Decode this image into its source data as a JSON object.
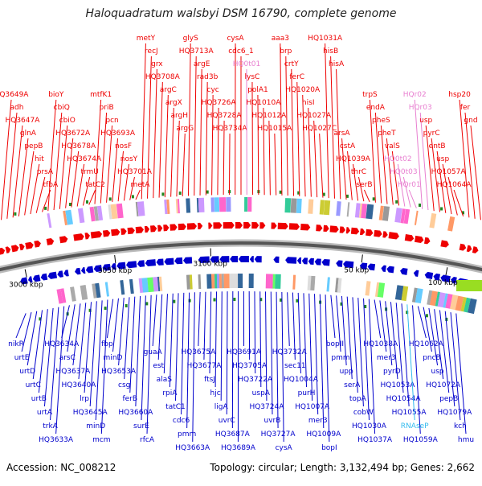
{
  "title": "Haloquadratum walsbyi DSM 16790, complete genome",
  "footer": {
    "accession": "Accession: NC_008212",
    "summary": "Topology: circular; Length: 3,132,494 bp; Genes: 2,662"
  },
  "colors": {
    "forward": "#ee0000",
    "reverse": "#0000cc",
    "rna_pink": "#e87fd0",
    "rna_cyan": "#33bbee",
    "backbone": "#777777"
  },
  "ticks": [
    "3100 kbp",
    "3050 kbp",
    "3000 kbp",
    "50 kbp",
    "100 kbp"
  ],
  "top_labels": [
    "HQ3649A",
    "adh",
    "HQ3647A",
    "glnA",
    "pepB",
    "hit",
    "prsA",
    "tfbA",
    "bioY",
    "cbiQ",
    "cbiO",
    "HQ3672A",
    "HQ3678A",
    "HQ3674A",
    "trmU",
    "tatC2",
    "mtfK1",
    "priB",
    "pcn",
    "HQ3693A",
    "nosF",
    "nosY",
    "HQ3701A",
    "metA",
    "metY",
    "recJ",
    "grx",
    "HQ3708A",
    "argC",
    "argX",
    "argH",
    "argG",
    "glyS",
    "HQ3713A",
    "argE",
    "rad3b",
    "cyc",
    "HQ3726A",
    "HQ3728A",
    "HQ3734A",
    "cysA",
    "cdc6_1",
    "HQ0t01",
    "lysC",
    "polA1",
    "HQ1010A",
    "HQ1012A",
    "HQ1015A",
    "aaa3",
    "brp",
    "crtY",
    "ferC",
    "HQ1020A",
    "hisI",
    "HQ1027A",
    "HQ1027C",
    "HQ1031A",
    "hisB",
    "hisA",
    "arsA",
    "cstA",
    "HQ1039A",
    "thrC",
    "serB",
    "trpS",
    "endA",
    "pheS",
    "pheT",
    "valS",
    "HQ0t02",
    "HQ0t03",
    "HQr01",
    "HQr02",
    "HQr03",
    "usp",
    "pyrC",
    "entB",
    "usp",
    "HQ1057A",
    "HQ1064A",
    "hsp20",
    "fer",
    "gnd"
  ],
  "bottom_labels": [
    "nikR",
    "urtE",
    "urtD",
    "urtC",
    "urtB",
    "urtA",
    "trkA",
    "HQ3633A",
    "HQ3634A",
    "arsC",
    "HQ3637A",
    "HQ3640A",
    "lrp",
    "HQ3645A",
    "minD",
    "mcm",
    "fbp",
    "minD",
    "HQ3653A",
    "csg",
    "ferB",
    "HQ3660A",
    "surE",
    "rfcA",
    "guaA",
    "est",
    "alaS",
    "rpiA",
    "tatC1",
    "cdc6",
    "pmm",
    "HQ3663A",
    "HQ3675A",
    "HQ3677A",
    "ftsJ",
    "hjc",
    "ligA",
    "uvrC",
    "HQ3687A",
    "HQ3689A",
    "HQ3691A",
    "HQ3705A",
    "HQ3722A",
    "uspA",
    "HQ3724A",
    "uvrB",
    "HQ3727A",
    "cysA",
    "HQ3732A",
    "sec11",
    "HQ1004A",
    "purH",
    "HQ1007A",
    "mer3",
    "HQ1009A",
    "bopI",
    "bopII",
    "pmm",
    "upp",
    "serA",
    "topA",
    "cobW",
    "HQ1030A",
    "HQ1037A",
    "HQ1038A",
    "mer3",
    "pyrD",
    "HQ1053A",
    "HQ1054A",
    "HQ1055A",
    "RNAseP",
    "HQ1059A",
    "HQ1062A",
    "pncB",
    "usp",
    "HQ1072A",
    "pepB",
    "HQ1079A",
    "kch",
    "hmu"
  ]
}
